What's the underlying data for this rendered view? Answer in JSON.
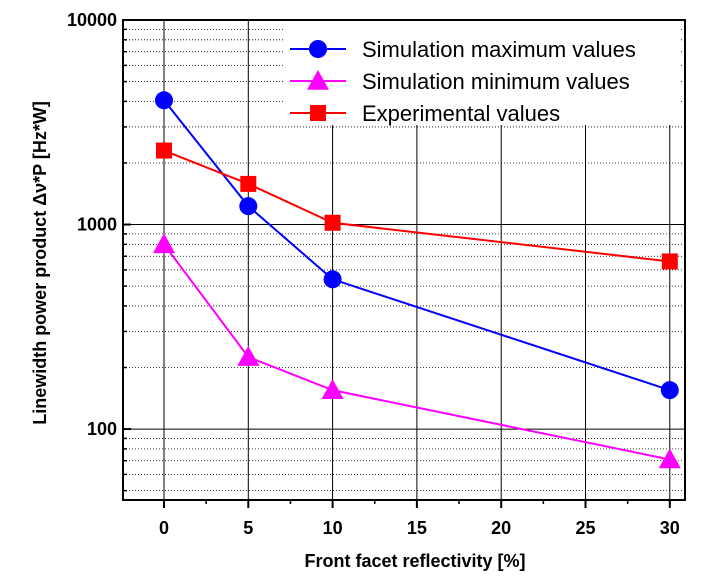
{
  "chart_data": {
    "type": "line",
    "title": "",
    "xlabel": "Front facet reflectivity [%]",
    "ylabel": "Linewidth power product Δν*P [Hz*W]",
    "x_scale": "linear",
    "y_scale": "log",
    "xlim": [
      -2.5,
      32.5
    ],
    "ylim": [
      45,
      10000
    ],
    "x_ticks": [
      0,
      5,
      10,
      15,
      20,
      25,
      30
    ],
    "x_tick_labels": [
      "0",
      "5",
      "10",
      "15",
      "20",
      "25",
      "30"
    ],
    "y_ticks": [
      100,
      1000,
      10000
    ],
    "y_tick_labels": [
      "100",
      "1000",
      "10000"
    ],
    "grid": true,
    "legend_position": "top-right",
    "series": [
      {
        "name": "Simulation maximum values",
        "marker": "circle",
        "color": "#0000ff",
        "x": [
          0,
          5,
          10,
          30
        ],
        "y": [
          4050,
          1230,
          540,
          155
        ]
      },
      {
        "name": "Simulation minimum values",
        "marker": "triangle",
        "color": "#ff00ff",
        "x": [
          0,
          5,
          10,
          30
        ],
        "y": [
          800,
          225,
          155,
          71
        ]
      },
      {
        "name": "Experimental values",
        "marker": "square",
        "color": "#ff0000",
        "x": [
          0,
          5,
          10,
          30
        ],
        "y": [
          2300,
          1580,
          1020,
          660
        ]
      }
    ]
  }
}
